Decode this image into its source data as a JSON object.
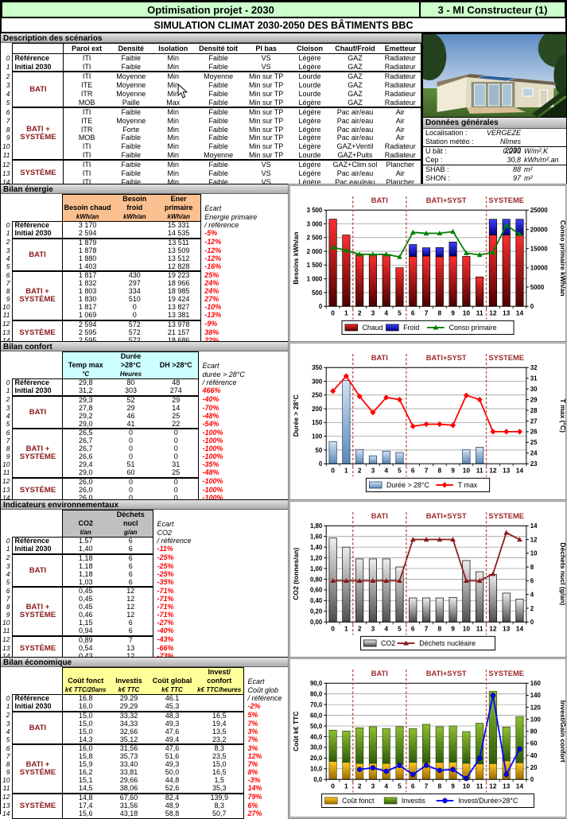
{
  "header": {
    "project_title": "Optimisation projet - 2030",
    "model_title": "3 - MI Constructeur (1)",
    "subtitle": "SIMULATION CLIMAT 2030-2050 DES BÂTIMENTS BBC"
  },
  "row_names": {
    "0": "Référence",
    "1": "Initial 2030"
  },
  "row_groups": [
    {
      "label": "BATI",
      "from": 2,
      "to": 5
    },
    {
      "label": "BATI +\nSYSTÈME",
      "from": 6,
      "to": 11
    },
    {
      "label": "SYSTÈME",
      "from": 12,
      "to": 14
    }
  ],
  "scenarios": {
    "section_title": "Description des scénarios",
    "columns": [
      "Paroi ext",
      "Densité",
      "Isolation",
      "Densité toit",
      "Pl bas",
      "Cloison",
      "Chauf/Froid",
      "Emetteur"
    ],
    "rows": [
      [
        "ITI",
        "Faible",
        "Min",
        "Faible",
        "VS",
        "Légère",
        "GAZ",
        "Radiateur"
      ],
      [
        "ITI",
        "Faible",
        "Min",
        "Faible",
        "VS",
        "Légère",
        "GAZ",
        "Radiateur"
      ],
      [
        "ITI",
        "Moyenne",
        "Min",
        "Moyenne",
        "Min sur TP",
        "Lourde",
        "GAZ",
        "Radiateur"
      ],
      [
        "ITE",
        "Moyenne",
        "Min",
        "Faible",
        "Min sur TP",
        "Lourde",
        "GAZ",
        "Radiateur"
      ],
      [
        "ITR",
        "Moyenne",
        "Min",
        "Faible",
        "Min sur TP",
        "Lourde",
        "GAZ",
        "Radatieur"
      ],
      [
        "MOB",
        "Paille",
        "Max",
        "Faible",
        "Min sur TP",
        "Légère",
        "GAZ",
        "Radiateur"
      ],
      [
        "ITI",
        "Faible",
        "Min",
        "Faible",
        "Min sur TP",
        "Légère",
        "Pac air/eau",
        "Air"
      ],
      [
        "ITE",
        "Moyenne",
        "Min",
        "Faible",
        "Min sur TP",
        "Légère",
        "Pac air/eau",
        "Air"
      ],
      [
        "ITR",
        "Forte",
        "Min",
        "Faible",
        "Min sur TP",
        "Légère",
        "Pac air/eau",
        "Air"
      ],
      [
        "MOB",
        "Faible",
        "Min",
        "Faible",
        "Min sur TP",
        "Légère",
        "Pac air/eau",
        "Air"
      ],
      [
        "ITI",
        "Faible",
        "Min",
        "Faible",
        "Min sur TP",
        "Légère",
        "GAZ+Ventil",
        "Radiateur"
      ],
      [
        "ITI",
        "Faible",
        "Min",
        "Moyenne",
        "Min sur TP",
        "Lourde",
        "GAZ+Puits",
        "Radiateur"
      ],
      [
        "ITI",
        "Faible",
        "Min",
        "Faible",
        "VS",
        "Légère",
        "GAZ+Clim sol",
        "Plancher"
      ],
      [
        "ITI",
        "Faible",
        "Min",
        "Faible",
        "VS",
        "Légère",
        "Pac air/eau",
        "Air"
      ],
      [
        "ITI",
        "Faible",
        "Min",
        "Faible",
        "VS",
        "Légère",
        "Pac eau/eau",
        "Plancher"
      ]
    ]
  },
  "general_data": {
    "title": "Données générales",
    "items": [
      {
        "label": "Localisation :",
        "value": "VERGEZE",
        "unit": ""
      },
      {
        "label": "Station météo :",
        "value": "Nîmes 2030",
        "unit": ""
      },
      {
        "label": "U bât :",
        "value": "0,293",
        "unit": "W/m².K"
      },
      {
        "label": "Cep :",
        "value": "30,8",
        "unit": "kWh/m².an"
      },
      {
        "label": "SHAB :",
        "value": "88",
        "unit": "m²"
      },
      {
        "label": "SHON :",
        "value": "97",
        "unit": "m²"
      }
    ]
  },
  "tables": [
    {
      "id": "energie",
      "section_title": "Bilan énergie",
      "header_bg": "#FAC090",
      "columns": [
        {
          "l1": "",
          "l2": "Besoin chaud",
          "unit": "kWh/an"
        },
        {
          "l1": "Besoin",
          "l2": "froid",
          "unit": "kWh/an"
        },
        {
          "l1": "Ener",
          "l2": "primaire",
          "unit": "kWh/an"
        }
      ],
      "ecart_header": [
        "Ecart",
        "Energie primaire"
      ],
      "rows": [
        [
          "3 170",
          "",
          "15 331"
        ],
        [
          "2 594",
          "",
          "14 535"
        ],
        [
          "1 879",
          "",
          "13 511"
        ],
        [
          "1 878",
          "",
          "13 509"
        ],
        [
          "1 880",
          "",
          "13 512"
        ],
        [
          "1 403",
          "",
          "12 828"
        ],
        [
          "1 817",
          "430",
          "19 223"
        ],
        [
          "1 832",
          "297",
          "18 966"
        ],
        [
          "1 803",
          "334",
          "18 985"
        ],
        [
          "1 830",
          "510",
          "19 424"
        ],
        [
          "1 817",
          "0",
          "13 827"
        ],
        [
          "1 069",
          "0",
          "13 381"
        ],
        [
          "2 594",
          "572",
          "13 978"
        ],
        [
          "2 595",
          "572",
          "21 157"
        ],
        [
          "2 595",
          "572",
          "18 686"
        ]
      ],
      "ecart_values": [
        "/ référence",
        "-5%",
        "-12%",
        "-12%",
        "-12%",
        "-16%",
        "25%",
        "24%",
        "24%",
        "27%",
        "-10%",
        "-13%",
        "-9%",
        "38%",
        "22%"
      ]
    },
    {
      "id": "confort",
      "section_title": "Bilan confort",
      "header_bg": "#CCFFFF",
      "columns": [
        {
          "l1": "",
          "l2": "Temp max",
          "unit": "°C"
        },
        {
          "l1": "Durée",
          "l2": ">28°C",
          "unit": "Heures"
        },
        {
          "l1": "",
          "l2": "DH >28°C",
          "unit": ""
        }
      ],
      "ecart_header": [
        "Ecart",
        "durée > 28°C"
      ],
      "rows": [
        [
          "29,8",
          "80",
          "48"
        ],
        [
          "31,2",
          "303",
          "274"
        ],
        [
          "29,3",
          "52",
          "29"
        ],
        [
          "27,8",
          "29",
          "14"
        ],
        [
          "29,2",
          "46",
          "25"
        ],
        [
          "29,0",
          "41",
          "22"
        ],
        [
          "26,5",
          "0",
          "0"
        ],
        [
          "26,7",
          "0",
          "0"
        ],
        [
          "26,7",
          "0",
          "0"
        ],
        [
          "26,6",
          "0",
          "0"
        ],
        [
          "29,4",
          "51",
          "31"
        ],
        [
          "29,0",
          "60",
          "25"
        ],
        [
          "26,0",
          "0",
          "0"
        ],
        [
          "26,0",
          "0",
          "0"
        ],
        [
          "26,0",
          "0",
          "0"
        ]
      ],
      "ecart_values": [
        "/ référence",
        "466%",
        "-40%",
        "-70%",
        "-48%",
        "-54%",
        "-100%",
        "-100%",
        "-100%",
        "-100%",
        "-35%",
        "-48%",
        "-100%",
        "-100%",
        "-100%"
      ]
    },
    {
      "id": "environnement",
      "section_title": "Indicateurs environnementaux",
      "header_bg": "#C0C0C0",
      "columns": [
        {
          "l1": "",
          "l2": "CO2",
          "unit": "t/an"
        },
        {
          "l1": "Déchets",
          "l2": "nucl",
          "unit": "g/an"
        }
      ],
      "ecart_header": [
        "Ecart",
        "CO2"
      ],
      "rows": [
        [
          "1.57",
          "6"
        ],
        [
          "1,40",
          "6"
        ],
        [
          "1,18",
          "6"
        ],
        [
          "1,18",
          "6"
        ],
        [
          "1,18",
          "6"
        ],
        [
          "1,03",
          "6"
        ],
        [
          "0,45",
          "12"
        ],
        [
          "0,45",
          "12"
        ],
        [
          "0,45",
          "12"
        ],
        [
          "0,46",
          "12"
        ],
        [
          "1,15",
          "6"
        ],
        [
          "0,94",
          "6"
        ],
        [
          "0,89",
          "7"
        ],
        [
          "0,54",
          "13"
        ],
        [
          "0,43",
          "12"
        ]
      ],
      "ecart_values": [
        "/ référence",
        "-11%",
        "-25%",
        "-25%",
        "-25%",
        "-35%",
        "-71%",
        "-71%",
        "-71%",
        "-71%",
        "-27%",
        "-40%",
        "-43%",
        "-66%",
        "-73%"
      ]
    },
    {
      "id": "economique",
      "section_title": "Bilan économique",
      "header_bg": "#FFFF99",
      "columns": [
        {
          "l1": "",
          "l2": "Coût fonct",
          "unit": "k€ TTC/20ans"
        },
        {
          "l1": "",
          "l2": "Investis",
          "unit": "k€ TTC"
        },
        {
          "l1": "",
          "l2": "Coût global",
          "unit": "k€ TTC"
        },
        {
          "l1": "Invest/",
          "l2": "confort",
          "unit": "k€ TTC/heures"
        }
      ],
      "ecart_header": [
        "Ecart",
        "Coût glob"
      ],
      "rows": [
        [
          "16.8",
          "29.29",
          "46.1",
          ""
        ],
        [
          "16,0",
          "29,29",
          "45,3",
          ""
        ],
        [
          "15,0",
          "33,32",
          "48,3",
          "16,5"
        ],
        [
          "15,0",
          "34,33",
          "49,3",
          "19,4"
        ],
        [
          "15,0",
          "32,66",
          "47,6",
          "13,5"
        ],
        [
          "14,3",
          "35,12",
          "49,4",
          "23,2"
        ],
        [
          "16,0",
          "31,56",
          "47,6",
          "8,3"
        ],
        [
          "15,8",
          "35,73",
          "51,6",
          "23,5"
        ],
        [
          "15,9",
          "33,40",
          "49,3",
          "15,0"
        ],
        [
          "16,2",
          "33,81",
          "50,0",
          "16,5"
        ],
        [
          "15,1",
          "29,66",
          "44,8",
          "1,5"
        ],
        [
          "14,5",
          "38,06",
          "52,6",
          "35,3"
        ],
        [
          "14,8",
          "67,60",
          "82,4",
          "139,9"
        ],
        [
          "17,4",
          "31,56",
          "48,9",
          "8,3"
        ],
        [
          "15,6",
          "43,18",
          "58,8",
          "50,7"
        ]
      ],
      "ecart_values": [
        "/ référence",
        "-2%",
        "5%",
        "7%",
        "3%",
        "7%",
        "3%",
        "12%",
        "7%",
        "8%",
        "-3%",
        "14%",
        "79%",
        "6%",
        "27%"
      ]
    }
  ],
  "chart_groups": {
    "labels": [
      "BATI",
      "BATI+SYST",
      "SYSTEME"
    ],
    "spans": [
      [
        2,
        5
      ],
      [
        6,
        11
      ],
      [
        12,
        14
      ]
    ],
    "label_color": "#9C2A2A",
    "separator_color": "#C0504D"
  },
  "chart_data": [
    {
      "type": "bar+line",
      "name": "energie",
      "x_labels": [
        "0",
        "1",
        "2",
        "3",
        "4",
        "5",
        "6",
        "7",
        "8",
        "9",
        "10",
        "11",
        "12",
        "13",
        "14"
      ],
      "left_axis": {
        "title": "Besoins kWh/an",
        "min": 0,
        "max": 3500,
        "step": 500,
        "labels": [
          "0",
          "500",
          "1 000",
          "1 500",
          "2 000",
          "2 500",
          "3 000",
          "3 500"
        ]
      },
      "right_axis": {
        "title": "Conso primaire kWh/an",
        "min": 0,
        "max": 25000,
        "step": 5000,
        "labels": [
          "0",
          "5000",
          "10000",
          "15000",
          "20000",
          "25000"
        ]
      },
      "bars": [
        {
          "name": "Chaud",
          "top": "#FF2E2E",
          "bottom": "#4D0000",
          "border": "#000000",
          "values": [
            3170,
            2594,
            1879,
            1878,
            1880,
            1403,
            1817,
            1832,
            1803,
            1830,
            1817,
            1069,
            2594,
            2595,
            2595
          ]
        },
        {
          "name": "Froid",
          "top": "#4040FF",
          "bottom": "#000080",
          "border": "#000000",
          "values": [
            0,
            0,
            0,
            0,
            0,
            0,
            430,
            297,
            334,
            510,
            0,
            0,
            572,
            572,
            572
          ]
        }
      ],
      "line": {
        "name": "Conso primaire",
        "color": "#008000",
        "marker": "triangle",
        "axis": "right",
        "values": [
          15331,
          14535,
          13511,
          13509,
          13512,
          12828,
          19223,
          18966,
          18985,
          19424,
          13827,
          13381,
          13978,
          21157,
          18686
        ]
      }
    },
    {
      "type": "bar+line",
      "name": "confort",
      "x_labels": [
        "0",
        "1",
        "2",
        "3",
        "4",
        "5",
        "6",
        "7",
        "8",
        "9",
        "10",
        "11",
        "12",
        "13",
        "14"
      ],
      "left_axis": {
        "title": "Durée > 28°C",
        "min": 0,
        "max": 350,
        "step": 50,
        "labels": [
          "0",
          "50",
          "100",
          "150",
          "200",
          "250",
          "300",
          "350"
        ]
      },
      "right_axis": {
        "title": "T max (°C)",
        "min": 23,
        "max": 32,
        "step": 1,
        "labels": [
          "23",
          "24",
          "25",
          "26",
          "27",
          "28",
          "29",
          "30",
          "31",
          "32"
        ]
      },
      "bars": [
        {
          "name": "Durée > 28°C",
          "top": "#D3E2F2",
          "bottom": "#5B87B7",
          "border": "#17375E",
          "values": [
            80,
            303,
            52,
            29,
            46,
            41,
            0,
            0,
            0,
            0,
            51,
            60,
            0,
            0,
            0
          ]
        }
      ],
      "line": {
        "name": "T max",
        "color": "#FF0000",
        "marker": "diamond",
        "axis": "right",
        "values": [
          29.8,
          31.2,
          29.3,
          27.8,
          29.2,
          29.0,
          26.5,
          26.7,
          26.7,
          26.6,
          29.4,
          29.0,
          26.0,
          26.0,
          26.0
        ]
      }
    },
    {
      "type": "bar+line",
      "name": "environnement",
      "x_labels": [
        "0",
        "1",
        "2",
        "3",
        "4",
        "5",
        "6",
        "7",
        "8",
        "9",
        "10",
        "11",
        "12",
        "13",
        "14"
      ],
      "left_axis": {
        "title": "CO2 (tonnes/an)",
        "min": 0,
        "max": 1.8,
        "step": 0.2,
        "labels": [
          "0,00",
          "0,20",
          "0,40",
          "0,60",
          "0,80",
          "1,00",
          "1,20",
          "1,40",
          "1,60",
          "1,80"
        ]
      },
      "right_axis": {
        "title": "Déchets nucl (g/an)",
        "min": 0,
        "max": 14,
        "step": 2,
        "labels": [
          "0",
          "2",
          "4",
          "6",
          "8",
          "10",
          "12",
          "14"
        ]
      },
      "bars": [
        {
          "name": "CO2",
          "top": "#EDEDED",
          "bottom": "#4D4D4D",
          "border": "#000000",
          "values": [
            1.57,
            1.4,
            1.18,
            1.18,
            1.18,
            1.03,
            0.45,
            0.45,
            0.45,
            0.46,
            1.15,
            0.94,
            0.89,
            0.54,
            0.43
          ]
        }
      ],
      "line": {
        "name": "Déchets nucléaire",
        "color": "#8B1A1A",
        "marker": "triangle",
        "axis": "right",
        "values": [
          6,
          6,
          6,
          6,
          6,
          6,
          12,
          12,
          12,
          12,
          6,
          6,
          7,
          13,
          12
        ]
      }
    },
    {
      "type": "bar+line",
      "name": "economique",
      "x_labels": [
        "0",
        "1",
        "2",
        "3",
        "4",
        "5",
        "6",
        "7",
        "8",
        "9",
        "10",
        "11",
        "12",
        "13",
        "14"
      ],
      "left_axis": {
        "title": "Coût k€ TTC",
        "min": 0,
        "max": 90,
        "step": 10,
        "labels": [
          "0,0",
          "10,0",
          "20,0",
          "30,0",
          "40,0",
          "50,0",
          "60,0",
          "70,0",
          "80,0",
          "90,0"
        ]
      },
      "right_axis": {
        "title": "Invest/Gain confort",
        "min": 0,
        "max": 160,
        "step": 20,
        "labels": [
          "0",
          "20",
          "40",
          "60",
          "80",
          "100",
          "120",
          "140",
          "160"
        ]
      },
      "bars": [
        {
          "name": "Coût fonct",
          "top": "#FFC825",
          "bottom": "#9A6A00",
          "border": "#5F4700",
          "values": [
            16.8,
            16.0,
            15.0,
            15.0,
            15.0,
            14.3,
            16.0,
            15.8,
            15.9,
            16.2,
            15.1,
            14.5,
            14.8,
            17.4,
            15.6
          ]
        },
        {
          "name": "Investis",
          "top": "#8FBE2F",
          "bottom": "#2F5A0B",
          "border": "#26480A",
          "values": [
            29.29,
            29.29,
            33.32,
            34.33,
            32.66,
            35.12,
            31.56,
            35.73,
            33.4,
            33.81,
            29.66,
            38.06,
            67.6,
            31.56,
            43.18
          ]
        }
      ],
      "line": {
        "name": "Invest/Durée>28°C",
        "color": "#0000FF",
        "marker": "circle",
        "axis": "right",
        "values": [
          null,
          null,
          16.5,
          19.4,
          13.5,
          23.2,
          8.3,
          23.5,
          15.0,
          16.5,
          1.5,
          35.3,
          139.9,
          8.3,
          50.7
        ]
      }
    }
  ]
}
